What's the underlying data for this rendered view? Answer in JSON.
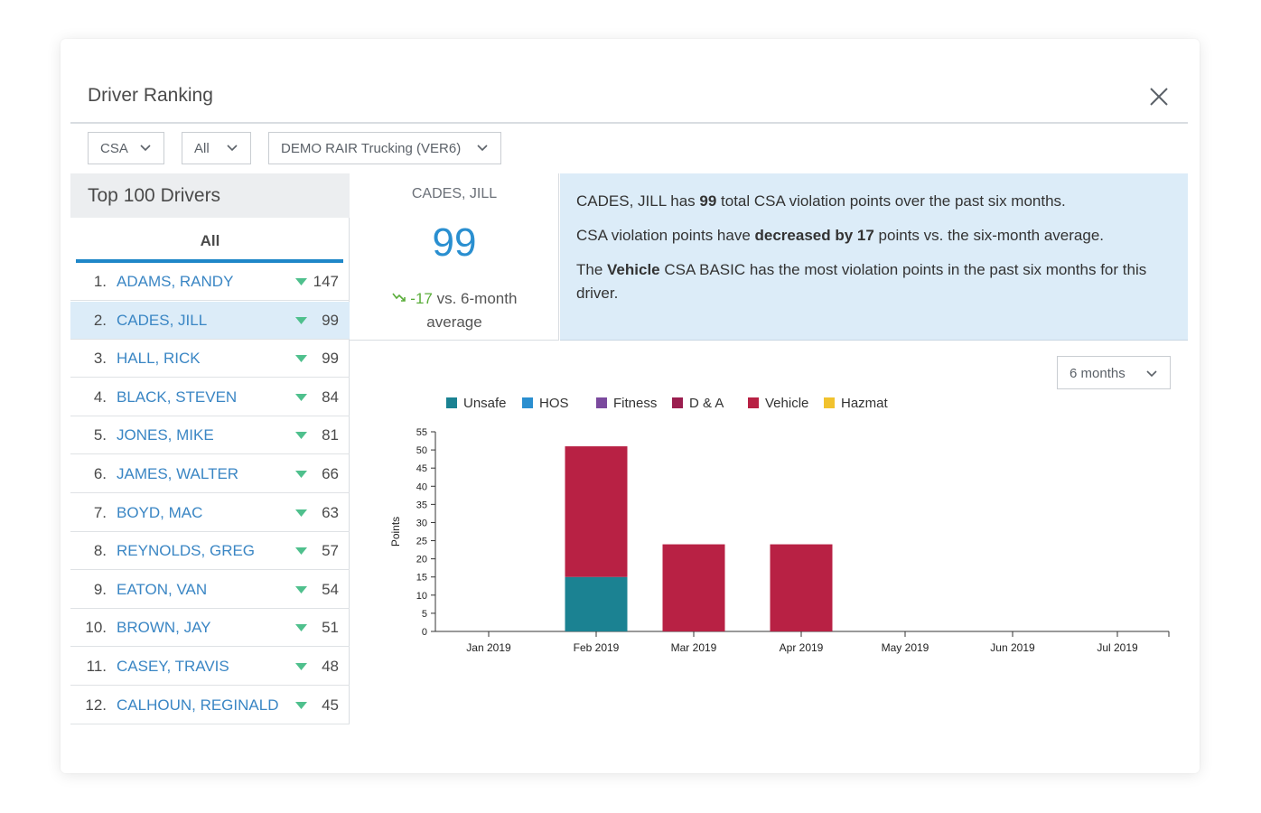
{
  "modal": {
    "title": "Driver Ranking"
  },
  "filters": {
    "program": "CSA",
    "category": "All",
    "company": "DEMO RAIR Trucking (VER6)"
  },
  "left": {
    "heading": "Top 100 Drivers",
    "tab": "All",
    "drivers": [
      {
        "rank": "1.",
        "name": "ADAMS, RANDY",
        "value": "147"
      },
      {
        "rank": "2.",
        "name": "CADES, JILL",
        "value": "99",
        "selected": true
      },
      {
        "rank": "3.",
        "name": "HALL, RICK",
        "value": "99"
      },
      {
        "rank": "4.",
        "name": "BLACK, STEVEN",
        "value": "84"
      },
      {
        "rank": "5.",
        "name": "JONES, MIKE",
        "value": "81"
      },
      {
        "rank": "6.",
        "name": "JAMES, WALTER",
        "value": "66"
      },
      {
        "rank": "7.",
        "name": "BOYD, MAC",
        "value": "63"
      },
      {
        "rank": "8.",
        "name": "REYNOLDS, GREG",
        "value": "57"
      },
      {
        "rank": "9.",
        "name": "EATON, VAN",
        "value": "54"
      },
      {
        "rank": "10.",
        "name": "BROWN, JAY",
        "value": "51"
      },
      {
        "rank": "11.",
        "name": "CASEY, TRAVIS",
        "value": "48"
      },
      {
        "rank": "12.",
        "name": "CALHOUN, REGINALD",
        "value": "45"
      }
    ]
  },
  "score": {
    "driver": "CADES, JILL",
    "value": "99",
    "delta": "-17",
    "delta_suffix": "vs. 6-month",
    "delta_suffix2": "average"
  },
  "summary": {
    "line1_a": "CADES, JILL has ",
    "line1_b": "99",
    "line1_c": " total CSA violation points over the past six months.",
    "line2_a": "CSA violation points have ",
    "line2_b": "decreased by 17",
    "line2_c": " points vs. the six-month average.",
    "line3_a": "The ",
    "line3_b": "Vehicle",
    "line3_c": " CSA BASIC has the most violation points in the past six months for this driver."
  },
  "period": {
    "label": "6 months"
  },
  "colors": {
    "accent": "#1f87c8",
    "link": "#3a86c4",
    "trend_down": "#4fc08d",
    "selected_row": "#dcecf8"
  },
  "chart_data": {
    "type": "bar",
    "stacked": true,
    "ylabel": "Points",
    "xlabel": "",
    "ylim": [
      0,
      55
    ],
    "yticks": [
      0,
      5,
      10,
      15,
      20,
      25,
      30,
      35,
      40,
      45,
      50,
      55
    ],
    "categories": [
      "Jan 2019",
      "Feb 2019",
      "Mar 2019",
      "Apr 2019",
      "May 2019",
      "Jun 2019",
      "Jul 2019"
    ],
    "series": [
      {
        "name": "Unsafe",
        "color": "#1b8292",
        "values": [
          0,
          15,
          0,
          0,
          0,
          0,
          0
        ]
      },
      {
        "name": "HOS",
        "color": "#2a8fd0",
        "values": [
          0,
          0,
          0,
          0,
          0,
          0,
          0
        ]
      },
      {
        "name": "Fitness",
        "color": "#7b4a9e",
        "values": [
          0,
          0,
          0,
          0,
          0,
          0,
          0
        ]
      },
      {
        "name": "D & A",
        "color": "#9b1e4f",
        "values": [
          0,
          0,
          0,
          0,
          0,
          0,
          0
        ]
      },
      {
        "name": "Vehicle",
        "color": "#b82144",
        "values": [
          0,
          36,
          24,
          24,
          0,
          0,
          0
        ]
      },
      {
        "name": "Hazmat",
        "color": "#f1c22e",
        "values": [
          0,
          0,
          0,
          0,
          0,
          0,
          0
        ]
      }
    ],
    "legend": "top",
    "grid": false
  }
}
